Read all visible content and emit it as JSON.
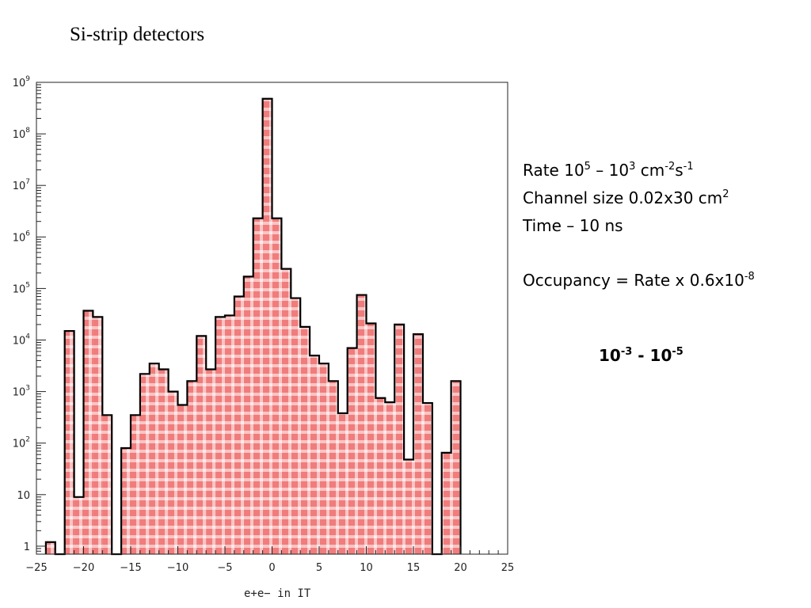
{
  "slide": {
    "title": "Si-strip detectors"
  },
  "notes": {
    "rate": {
      "pre": "Rate 10",
      "e1": "5",
      "mid": " – 10",
      "e2": "3",
      "unit": " cm",
      "e3": "-2",
      "unit2": "s",
      "e4": "-1"
    },
    "channel": {
      "pre": "Channel size 0.02x30 cm",
      "e1": "2"
    },
    "time": "Time – 10 ns",
    "occupancy": {
      "pre": "Occupancy = Rate x 0.6x10",
      "e1": "-8"
    }
  },
  "result": {
    "base1": "10",
    "e1": "-3",
    "mid": " - 10",
    "e2": "-5"
  },
  "chart_data": {
    "type": "bar",
    "xlabel": "e+e− in IT",
    "x_ticks": [
      "−25",
      "−20",
      "−15",
      "−10",
      "−5",
      "0",
      "5",
      "10",
      "15",
      "20",
      "25"
    ],
    "y_ticks": [
      {
        "base": "1",
        "exp": ""
      },
      {
        "base": "10",
        "exp": ""
      },
      {
        "base": "10",
        "exp": "2"
      },
      {
        "base": "10",
        "exp": "3"
      },
      {
        "base": "10",
        "exp": "4"
      },
      {
        "base": "10",
        "exp": "5"
      },
      {
        "base": "10",
        "exp": "6"
      },
      {
        "base": "10",
        "exp": "7"
      },
      {
        "base": "10",
        "exp": "8"
      },
      {
        "base": "10",
        "exp": "9"
      }
    ],
    "xlim": [
      -25,
      25
    ],
    "ylim": [
      0.7,
      1000000000
    ],
    "y_scale": "log",
    "bin_width": 1,
    "bin_edges_start": -24,
    "values": [
      1.2,
      0,
      15000,
      9,
      37000,
      28000,
      350,
      0,
      80,
      350,
      2200,
      3500,
      2700,
      1000,
      550,
      1600,
      12000,
      2700,
      28000,
      30000,
      70000,
      170000,
      2300000,
      480000000,
      2300000,
      240000,
      65000,
      18000,
      5000,
      3500,
      1600,
      380,
      7000,
      75000,
      21000,
      750,
      620,
      20000,
      48,
      13000,
      600,
      0,
      65,
      1600
    ],
    "fill_color": "#f08080",
    "edge_color": "#000000",
    "grid": false
  }
}
